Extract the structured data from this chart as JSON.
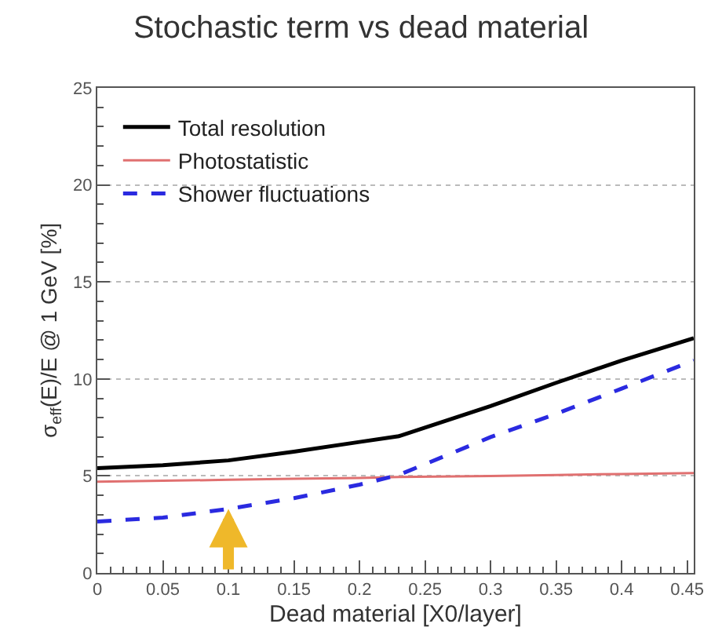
{
  "chart_data": {
    "type": "line",
    "title": "Stochastic term vs dead material",
    "xlabel": "Dead material [X0/layer]",
    "ylabel": "σ$_{eff}$(E)/E @ 1 GeV [%]",
    "x": [
      0,
      0.05,
      0.1,
      0.15,
      0.2,
      0.23,
      0.3,
      0.35,
      0.4,
      0.455
    ],
    "series": [
      {
        "name": "Total resolution",
        "color": "#000000",
        "line_style": "solid",
        "values": [
          5.4,
          5.55,
          5.8,
          6.25,
          6.75,
          7.05,
          8.6,
          9.8,
          10.95,
          12.1
        ]
      },
      {
        "name": "Photostatistic",
        "color": "#e07070",
        "line_style": "solid",
        "values": [
          4.7,
          4.75,
          4.8,
          4.85,
          4.9,
          4.95,
          5.0,
          5.05,
          5.1,
          5.15
        ]
      },
      {
        "name": "Shower fluctuations",
        "color": "#2a2ae0",
        "line_style": "dashed",
        "values": [
          2.65,
          2.85,
          3.3,
          3.85,
          4.55,
          5.05,
          7.0,
          8.2,
          9.5,
          10.95
        ]
      }
    ],
    "xlim": [
      0,
      0.455
    ],
    "xticks": [
      0,
      0.05,
      0.1,
      0.15,
      0.2,
      0.25,
      0.3,
      0.35,
      0.4,
      0.45
    ],
    "ylim": [
      0,
      25
    ],
    "yticks": [
      0,
      5,
      10,
      15,
      20,
      25
    ],
    "grid": "y",
    "legend": "top left",
    "marker": "none"
  }
}
